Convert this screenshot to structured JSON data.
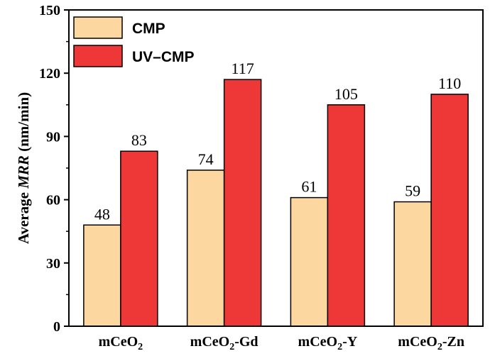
{
  "chart_data": {
    "type": "bar",
    "categories": [
      {
        "base": "mCeO",
        "sub": "2",
        "suffix": ""
      },
      {
        "base": "mCeO",
        "sub": "2",
        "suffix": "-Gd"
      },
      {
        "base": "mCeO",
        "sub": "2",
        "suffix": "-Y"
      },
      {
        "base": "mCeO",
        "sub": "2",
        "suffix": "-Zn"
      }
    ],
    "series": [
      {
        "name": "CMP",
        "values": [
          48,
          74,
          61,
          59
        ],
        "color": "#FDD7A0"
      },
      {
        "name": "UV–CMP",
        "values": [
          83,
          117,
          105,
          110
        ],
        "color": "#EE3838"
      }
    ],
    "ylabel": {
      "prefix": "Average ",
      "italic": "MRR",
      "suffix": " (nm/min)"
    },
    "ylim": [
      0,
      150
    ],
    "yticks": [
      0,
      30,
      60,
      90,
      120,
      150
    ],
    "legend": "top-left",
    "grid": false
  }
}
